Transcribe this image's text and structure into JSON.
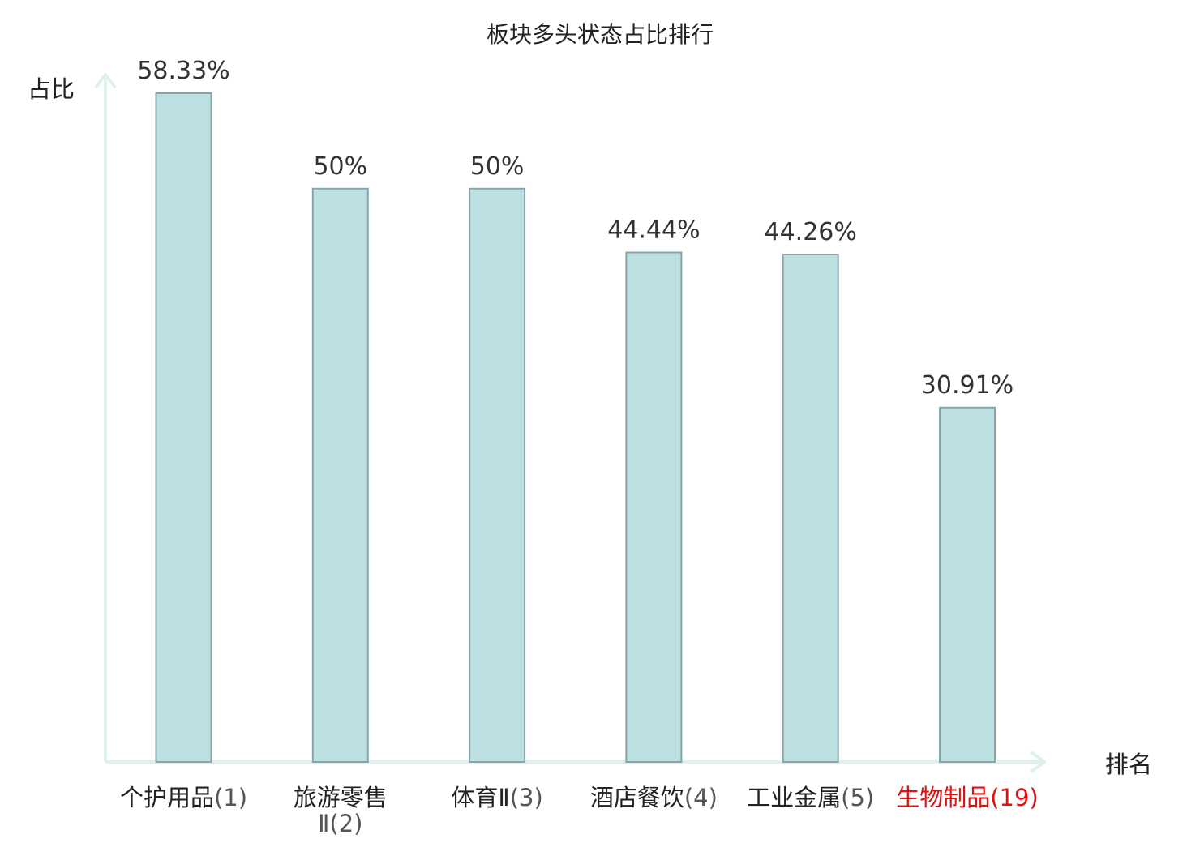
{
  "chart_data": {
    "type": "bar",
    "title": "板块多头状态占比排行",
    "ylabel": "占比",
    "xlabel": "排名",
    "ylim": [
      0,
      60
    ],
    "grid": false,
    "categories": [
      {
        "name": "个护用品",
        "rank": "(1)"
      },
      {
        "name": "旅游零售Ⅱ",
        "rank": "(2)"
      },
      {
        "name": "体育Ⅱ",
        "rank": "(3)"
      },
      {
        "name": "酒店餐饮",
        "rank": "(4)"
      },
      {
        "name": "工业金属",
        "rank": "(5)"
      },
      {
        "name": "生物制品",
        "rank": "(19)"
      }
    ],
    "values": [
      58.33,
      50,
      50,
      44.44,
      44.26,
      30.91
    ],
    "value_labels": [
      "58.33%",
      "50%",
      "50%",
      "44.44%",
      "44.26%",
      "30.91%"
    ],
    "highlight_index": 5
  },
  "colors": {
    "bar_fill": "#bde0e3",
    "bar_stroke": "#87a5a8",
    "axis": "#dff1ee",
    "highlight": "#e0100f"
  }
}
